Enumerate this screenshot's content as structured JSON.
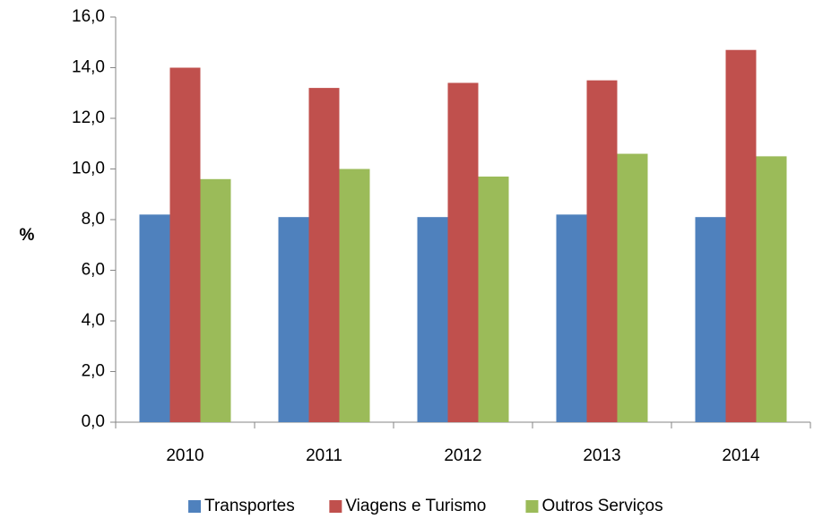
{
  "chart_data": {
    "type": "bar",
    "ylabel": "%",
    "categories": [
      "2010",
      "2011",
      "2012",
      "2013",
      "2014"
    ],
    "series": [
      {
        "name": "Transportes",
        "color": "#4f81bd",
        "values": [
          8.2,
          8.1,
          8.1,
          8.2,
          8.1
        ]
      },
      {
        "name": "Viagens e Turismo",
        "color": "#c0504d",
        "values": [
          14.0,
          13.2,
          13.4,
          13.5,
          14.7
        ]
      },
      {
        "name": "Outros Serviços",
        "color": "#9bbb59",
        "values": [
          9.6,
          10.0,
          9.7,
          10.6,
          10.5
        ]
      }
    ],
    "ylim": [
      0,
      16
    ],
    "yticks": [
      {
        "value": 0,
        "label": "0,0"
      },
      {
        "value": 2,
        "label": "2,0"
      },
      {
        "value": 4,
        "label": "4,0"
      },
      {
        "value": 6,
        "label": "6,0"
      },
      {
        "value": 8,
        "label": "8,0"
      },
      {
        "value": 10,
        "label": "10,0"
      },
      {
        "value": 12,
        "label": "12,0"
      },
      {
        "value": 14,
        "label": "14,0"
      },
      {
        "value": 16,
        "label": "16,0"
      }
    ],
    "grid": false,
    "legend": "bottom"
  }
}
